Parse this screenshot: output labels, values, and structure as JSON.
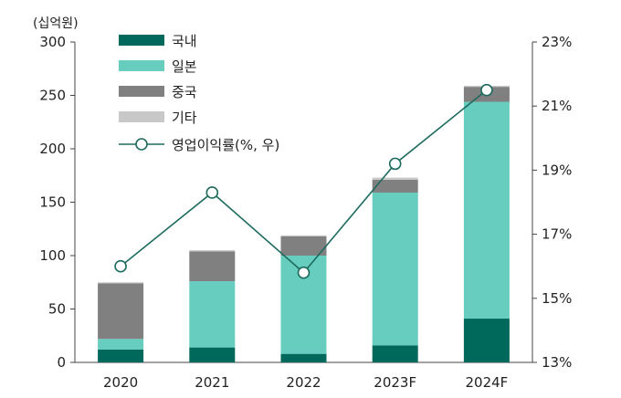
{
  "chart_data": {
    "type": "bar",
    "stacked": true,
    "categories": [
      "2020",
      "2021",
      "2022",
      "2023F",
      "2024F"
    ],
    "y_unit_label": "(십억원)",
    "ylim": [
      0,
      300
    ],
    "y_ticks": [
      "0",
      "50",
      "100",
      "150",
      "200",
      "250",
      "300"
    ],
    "y2lim": [
      13,
      23
    ],
    "y2_ticks": [
      "13%",
      "15%",
      "17%",
      "19%",
      "21%",
      "23%"
    ],
    "grid": false,
    "legend_position": "top-left",
    "series": [
      {
        "name": "국내",
        "color": "#00695c",
        "values": [
          12,
          14,
          8,
          16,
          41
        ]
      },
      {
        "name": "일본",
        "color": "#66cdbf",
        "values": [
          10,
          62,
          92,
          143,
          203
        ]
      },
      {
        "name": "중국",
        "color": "#808080",
        "values": [
          52,
          28,
          18,
          12,
          14
        ]
      },
      {
        "name": "기타",
        "color": "#c8c8c8",
        "values": [
          1,
          1,
          1,
          2,
          1
        ]
      }
    ],
    "line_series": {
      "name": "영업이익률(%, 우)",
      "color": "#1e6b5e",
      "axis": "right",
      "values": [
        16.0,
        18.3,
        15.8,
        19.2,
        21.5
      ]
    }
  }
}
